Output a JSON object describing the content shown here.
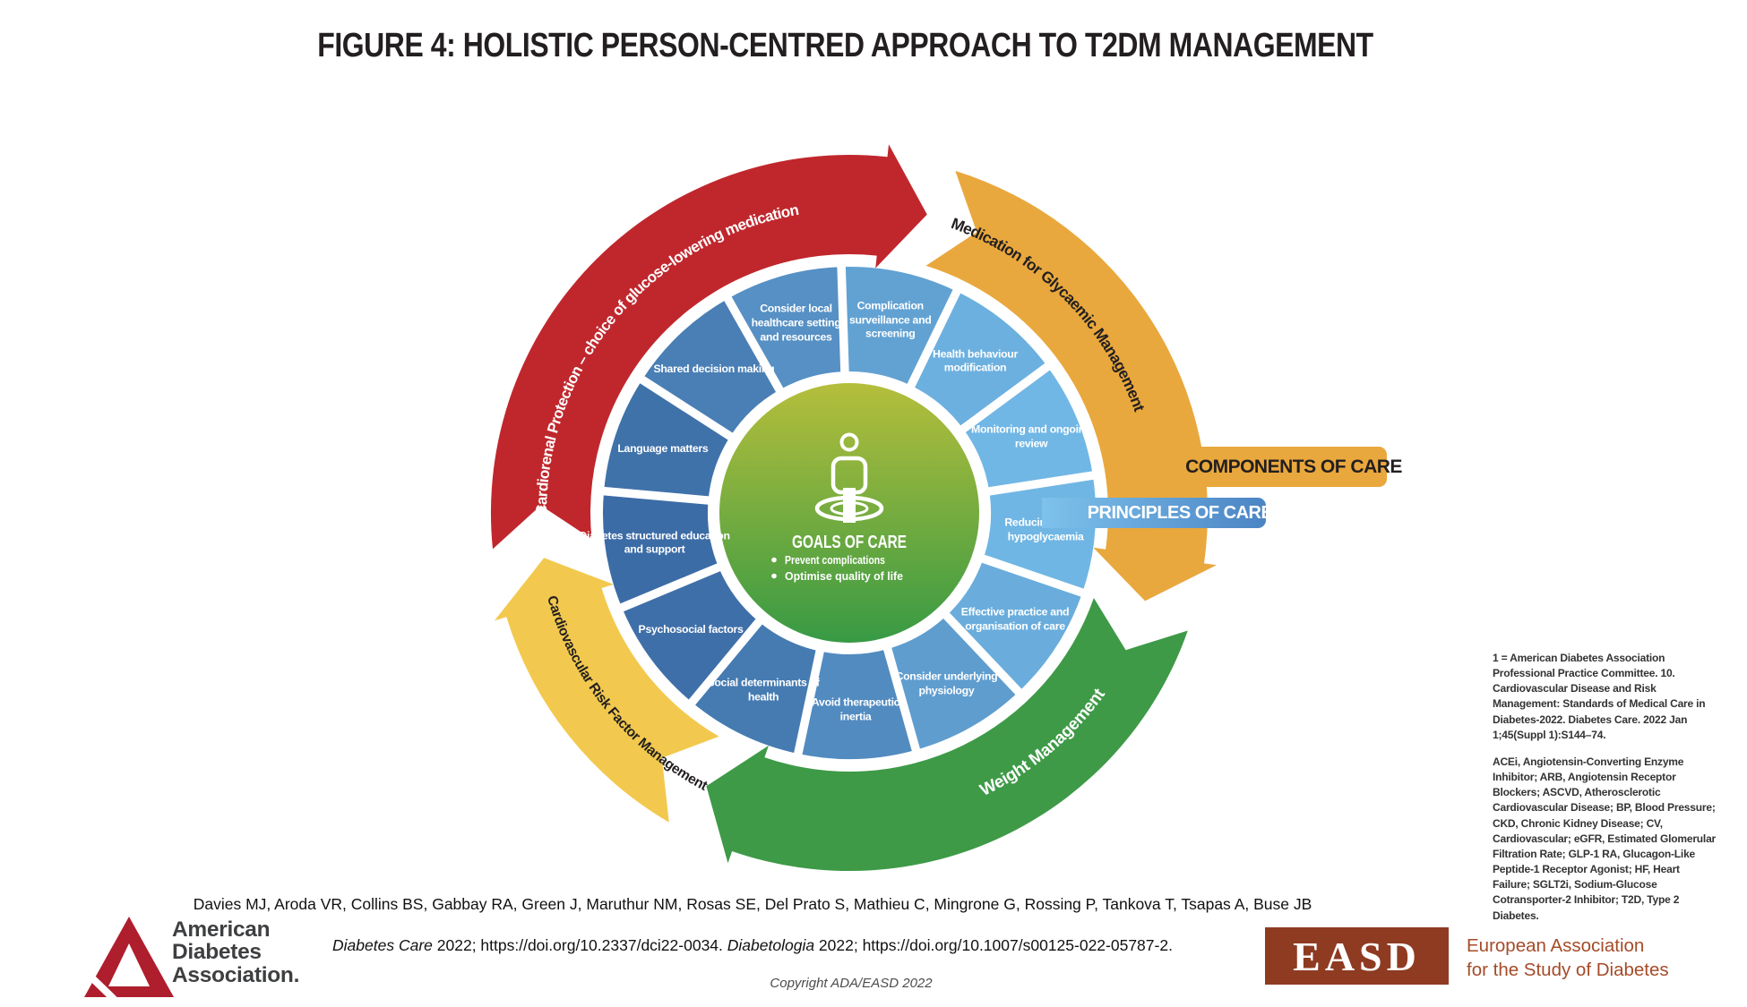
{
  "title": "FIGURE 4: HOLISTIC PERSON-CENTRED APPROACH TO T2DM MANAGEMENT",
  "diagram": {
    "outer_arcs": [
      {
        "label": "Cardiorenal Protection – choice of glucose-lowering medication",
        "color": "#C0272D",
        "text_color": "#FFFFFF"
      },
      {
        "label": "Medication for Glycaemic Management",
        "color": "#E9A83D",
        "text_color": "#231F20"
      },
      {
        "label": "Weight Management",
        "color": "#3E9A47",
        "text_color": "#FFFFFF"
      },
      {
        "label": "Cardiovascular Risk Factor Management",
        "color": "#F2C94E",
        "text_color": "#231F20"
      }
    ],
    "ring_segments": [
      "Complication surveillance and screening",
      "Health behaviour modification",
      "Monitoring and ongoing review",
      "Reducing risk of hypoglycaemia",
      "Effective practice and organisation of care",
      "Consider underlying physiology",
      "Avoid therapeutic inertia",
      "Social determinants of health",
      "Psychosocial factors",
      "Diabetes structured education and support",
      "Language matters",
      "Shared decision making",
      "Consider local healthcare setting and resources"
    ],
    "ring_colors": {
      "dark": "#3A69A3",
      "light": "#74BBE8"
    },
    "center": {
      "heading": "GOALS OF CARE",
      "bullets": [
        "Prevent complications",
        "Optimise quality of life"
      ]
    },
    "side_labels": {
      "components": "COMPONENTS OF CARE",
      "principles": "PRINCIPLES OF CARE"
    }
  },
  "footnotes": {
    "reference": "1 = American Diabetes Association Professional Practice Committee. 10. Cardiovascular Disease and Risk Management: Standards of Medical Care in Diabetes-2022. Diabetes Care. 2022 Jan 1;45(Suppl 1):S144–74.",
    "abbreviations": "ACEi, Angiotensin-Converting Enzyme Inhibitor; ARB, Angiotensin Receptor Blockers; ASCVD, Atherosclerotic Cardiovascular Disease; BP, Blood Pressure; CKD, Chronic Kidney Disease; CV, Cardiovascular; eGFR, Estimated Glomerular Filtration Rate; GLP-1 RA, Glucagon-Like Peptide-1 Receptor Agonist; HF, Heart Failure; SGLT2i, Sodium-Glucose Cotransporter-2 Inhibitor; T2D, Type 2 Diabetes."
  },
  "credits": {
    "authors": "Davies MJ, Aroda VR, Collins BS, Gabbay RA, Green J, Maruthur NM, Rosas SE, Del Prato S, Mathieu C, Mingrone G, Rossing P, Tankova T, Tsapas A, Buse JB",
    "citation": {
      "journal1": "Diabetes Care",
      "part1": " 2022; https://doi.org/10.2337/dci22-0034. ",
      "journal2": "Diabetologia",
      "part2": " 2022; https://doi.org/10.1007/s00125-022-05787-2."
    },
    "copyright": "Copyright ADA/EASD 2022"
  },
  "logos": {
    "ada": {
      "line1": "American",
      "line2": "Diabetes",
      "line3": "Association."
    },
    "easd": {
      "acronym": "EASD",
      "line1": "European Association",
      "line2": "for the Study of Diabetes"
    }
  }
}
